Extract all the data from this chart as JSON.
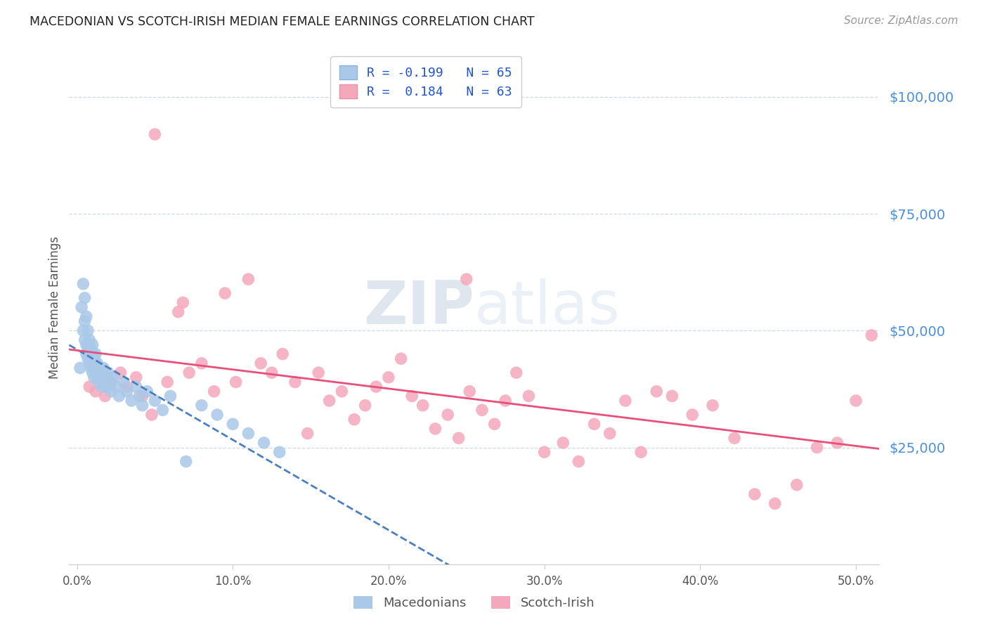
{
  "title": "MACEDONIAN VS SCOTCH-IRISH MEDIAN FEMALE EARNINGS CORRELATION CHART",
  "source": "Source: ZipAtlas.com",
  "ylabel": "Median Female Earnings",
  "xlabel_ticks": [
    "0.0%",
    "10.0%",
    "20.0%",
    "30.0%",
    "40.0%",
    "50.0%"
  ],
  "xlabel_vals": [
    0.0,
    0.1,
    0.2,
    0.3,
    0.4,
    0.5
  ],
  "ytick_labels": [
    "$25,000",
    "$50,000",
    "$75,000",
    "$100,000"
  ],
  "ytick_vals": [
    25000,
    50000,
    75000,
    100000
  ],
  "ylim": [
    0,
    110000
  ],
  "xlim": [
    -0.005,
    0.515
  ],
  "legend_label1": "Macedonians",
  "legend_label2": "Scotch-Irish",
  "macedonian_color": "#aac8e8",
  "scotch_irish_color": "#f4a8bc",
  "macedonian_line_color": "#4a7fc1",
  "scotch_irish_line_color": "#e8507a",
  "background_color": "#ffffff",
  "grid_color": "#d0d8e0",
  "title_color": "#222222",
  "source_color": "#999999",
  "axis_label_color": "#555555",
  "ytick_color": "#4a90d9",
  "xtick_color": "#555555",
  "macedonian_x": [
    0.002,
    0.003,
    0.004,
    0.004,
    0.005,
    0.005,
    0.005,
    0.006,
    0.006,
    0.006,
    0.007,
    0.007,
    0.007,
    0.008,
    0.008,
    0.008,
    0.009,
    0.009,
    0.009,
    0.01,
    0.01,
    0.01,
    0.01,
    0.011,
    0.011,
    0.011,
    0.012,
    0.012,
    0.012,
    0.013,
    0.013,
    0.013,
    0.014,
    0.014,
    0.015,
    0.015,
    0.016,
    0.016,
    0.017,
    0.017,
    0.018,
    0.019,
    0.02,
    0.021,
    0.022,
    0.023,
    0.025,
    0.027,
    0.03,
    0.032,
    0.035,
    0.038,
    0.04,
    0.042,
    0.045,
    0.05,
    0.055,
    0.06,
    0.07,
    0.08,
    0.09,
    0.1,
    0.11,
    0.12,
    0.13
  ],
  "macedonian_y": [
    42000,
    55000,
    60000,
    50000,
    57000,
    52000,
    48000,
    53000,
    47000,
    45000,
    50000,
    44000,
    46000,
    48000,
    43000,
    45000,
    42000,
    44000,
    46000,
    43000,
    41000,
    45000,
    47000,
    42000,
    44000,
    40000,
    43000,
    41000,
    45000,
    42000,
    40000,
    43000,
    41000,
    39000,
    42000,
    40000,
    38000,
    41000,
    39000,
    42000,
    40000,
    38000,
    41000,
    39000,
    37000,
    40000,
    38000,
    36000,
    39000,
    37000,
    35000,
    38000,
    36000,
    34000,
    37000,
    35000,
    33000,
    36000,
    22000,
    34000,
    32000,
    30000,
    28000,
    26000,
    24000
  ],
  "scotch_irish_x": [
    0.008,
    0.012,
    0.018,
    0.022,
    0.028,
    0.032,
    0.038,
    0.042,
    0.05,
    0.058,
    0.065,
    0.072,
    0.08,
    0.088,
    0.095,
    0.102,
    0.11,
    0.118,
    0.125,
    0.132,
    0.14,
    0.148,
    0.155,
    0.162,
    0.17,
    0.178,
    0.185,
    0.192,
    0.2,
    0.208,
    0.215,
    0.222,
    0.23,
    0.238,
    0.245,
    0.252,
    0.26,
    0.268,
    0.275,
    0.282,
    0.29,
    0.3,
    0.312,
    0.322,
    0.332,
    0.342,
    0.352,
    0.362,
    0.372,
    0.382,
    0.395,
    0.408,
    0.422,
    0.435,
    0.448,
    0.462,
    0.475,
    0.488,
    0.5,
    0.51,
    0.048,
    0.068,
    0.25
  ],
  "scotch_irish_y": [
    38000,
    37000,
    36000,
    39000,
    41000,
    38000,
    40000,
    36000,
    92000,
    39000,
    54000,
    41000,
    43000,
    37000,
    58000,
    39000,
    61000,
    43000,
    41000,
    45000,
    39000,
    28000,
    41000,
    35000,
    37000,
    31000,
    34000,
    38000,
    40000,
    44000,
    36000,
    34000,
    29000,
    32000,
    27000,
    37000,
    33000,
    30000,
    35000,
    41000,
    36000,
    24000,
    26000,
    22000,
    30000,
    28000,
    35000,
    24000,
    37000,
    36000,
    32000,
    34000,
    27000,
    15000,
    13000,
    17000,
    25000,
    26000,
    35000,
    49000,
    32000,
    56000,
    61000
  ]
}
